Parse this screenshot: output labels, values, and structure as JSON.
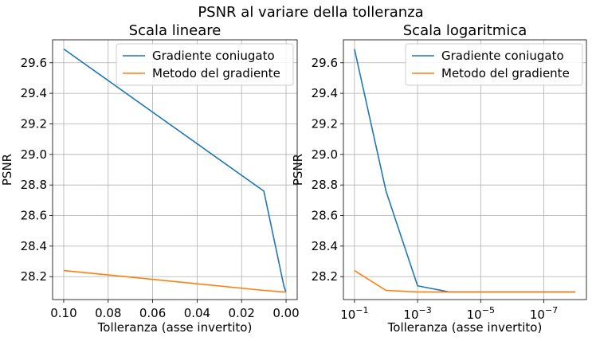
{
  "figure": {
    "suptitle": "PSNR al variare della tolleranza"
  },
  "colors": {
    "series_1": "#1f77b4",
    "series_2": "#ff7f0e",
    "grid": "#b0b0b0"
  },
  "chart_data": [
    {
      "type": "line",
      "title": "Scala lineare",
      "xlabel": "Tolleranza (asse invertito)",
      "ylabel": "PSNR",
      "x_scale": "linear",
      "x_inverted": true,
      "xlim": [
        0.1,
        0.0
      ],
      "ylim": [
        28.05,
        29.75
      ],
      "x_ticks": [
        0.1,
        0.08,
        0.06,
        0.04,
        0.02,
        0.0
      ],
      "x_tick_labels": [
        "0.10",
        "0.08",
        "0.06",
        "0.04",
        "0.02",
        "0.00"
      ],
      "y_ticks": [
        28.2,
        28.4,
        28.6,
        28.8,
        29.0,
        29.2,
        29.4,
        29.6
      ],
      "y_tick_labels": [
        "28.2",
        "28.4",
        "28.6",
        "28.8",
        "29.0",
        "29.2",
        "29.4",
        "29.6"
      ],
      "grid": true,
      "legend": "top-right",
      "x": [
        0.1,
        0.01,
        0.001,
        0.0001,
        1e-05,
        1e-06,
        1e-07,
        1e-08
      ],
      "series": [
        {
          "name": "Gradiente coniugato",
          "values": [
            29.69,
            28.76,
            28.14,
            28.1,
            28.1,
            28.1,
            28.1,
            28.1
          ]
        },
        {
          "name": "Metodo del gradiente",
          "values": [
            28.24,
            28.11,
            28.1,
            28.1,
            28.1,
            28.1,
            28.1,
            28.1
          ]
        }
      ]
    },
    {
      "type": "line",
      "title": "Scala logaritmica",
      "xlabel": "Tolleranza (asse invertito)",
      "ylabel": "PSNR",
      "x_scale": "log",
      "x_inverted": true,
      "xlim": [
        0.1,
        1e-08
      ],
      "ylim": [
        28.05,
        29.75
      ],
      "x_ticks": [
        0.1,
        0.001,
        1e-05,
        1e-07
      ],
      "x_tick_labels": [
        {
          "base": "10",
          "exp": "−1"
        },
        {
          "base": "10",
          "exp": "−3"
        },
        {
          "base": "10",
          "exp": "−5"
        },
        {
          "base": "10",
          "exp": "−7"
        }
      ],
      "y_ticks": [
        28.2,
        28.4,
        28.6,
        28.8,
        29.0,
        29.2,
        29.4,
        29.6
      ],
      "y_tick_labels": [
        "28.2",
        "28.4",
        "28.6",
        "28.8",
        "29.0",
        "29.2",
        "29.4",
        "29.6"
      ],
      "grid": true,
      "legend": "top-right",
      "x": [
        0.1,
        0.01,
        0.001,
        0.0001,
        1e-05,
        1e-06,
        1e-07,
        1e-08
      ],
      "series": [
        {
          "name": "Gradiente coniugato",
          "values": [
            29.69,
            28.76,
            28.14,
            28.1,
            28.1,
            28.1,
            28.1,
            28.1
          ]
        },
        {
          "name": "Metodo del gradiente",
          "values": [
            28.24,
            28.11,
            28.1,
            28.1,
            28.1,
            28.1,
            28.1,
            28.1
          ]
        }
      ]
    }
  ]
}
